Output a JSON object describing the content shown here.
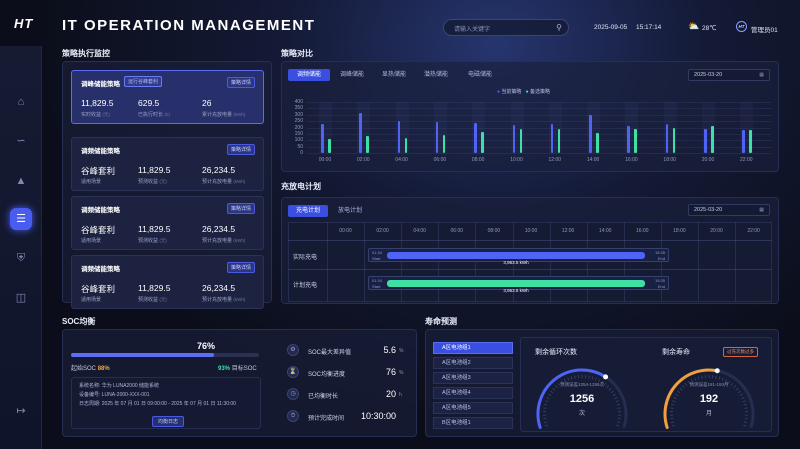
{
  "app": {
    "logo": "HT",
    "title": "IT OPERATION MANAGEMENT"
  },
  "topbar": {
    "search_placeholder": "请输入关键字",
    "date": "2025-09-05",
    "time": "15:17:14",
    "weather_icon": "partly-cloudy-icon",
    "temperature": "28℃",
    "user": "管理员01"
  },
  "sidebar": {
    "items": [
      {
        "icon": "home-icon"
      },
      {
        "icon": "chart-icon"
      },
      {
        "icon": "alarm-icon"
      },
      {
        "icon": "list-icon",
        "active": true
      },
      {
        "icon": "shield-icon"
      },
      {
        "icon": "database-icon"
      }
    ],
    "logout_icon": "logout-icon"
  },
  "strategy_monitor": {
    "title": "策略执行监控",
    "cards": [
      {
        "name": "调峰储能策略",
        "badge": "运行谷峰套利",
        "detail": "策略详情",
        "v1": "11,829.5",
        "l1": "实时收益",
        "u1": "(元)",
        "v2": "629.5",
        "l2": "已执行时长",
        "u2": "(h)",
        "v3": "26",
        "l3": "累计充放电量",
        "u3": "(kWh)"
      },
      {
        "name": "调频储能策略",
        "detail": "策略详情",
        "v1": "谷峰套利",
        "l1": "适用场景",
        "v2": "11,829.5",
        "l2": "预测收益",
        "u2": "(元)",
        "v3": "26,234.5",
        "l3": "预计充放电量",
        "u3": "(kWh)"
      },
      {
        "name": "调频储能策略",
        "detail": "策略详情",
        "v1": "谷峰套利",
        "l1": "适用场景",
        "v2": "11,829.5",
        "l2": "预测收益",
        "u2": "(元)",
        "v3": "26,234.5",
        "l3": "预计充放电量",
        "u3": "(kWh)"
      },
      {
        "name": "调频储能策略",
        "detail": "策略详情",
        "v1": "谷峰套利",
        "l1": "适用场景",
        "v2": "11,829.5",
        "l2": "预测收益",
        "u2": "(元)",
        "v3": "26,234.5",
        "l3": "预计充放电量",
        "u3": "(kWh)"
      }
    ]
  },
  "strategy_compare": {
    "title": "策略对比",
    "tabs": [
      "调频储能",
      "调峰储能",
      "显热储能",
      "潜热储能",
      "电磁储能"
    ],
    "date": "2025-03-20",
    "legend": [
      "当前策略",
      "备选策略"
    ],
    "colors": {
      "current": "#4f63f5",
      "alt": "#3fe0a4"
    },
    "y_ticks": [
      "400",
      "350",
      "300",
      "250",
      "200",
      "150",
      "100",
      "50",
      "0"
    ],
    "x_ticks": [
      "00:00",
      "02:00",
      "04:00",
      "06:00",
      "08:00",
      "10:00",
      "12:00",
      "14:00",
      "16:00",
      "18:00",
      "20:00",
      "22:00"
    ],
    "chart_data": {
      "type": "bar",
      "categories": [
        "00:00",
        "02:00",
        "04:00",
        "06:00",
        "08:00",
        "10:00",
        "12:00",
        "14:00",
        "16:00",
        "18:00",
        "20:00",
        "22:00"
      ],
      "ylim": [
        0,
        400
      ],
      "series": [
        {
          "name": "当前策略",
          "values": [
            230,
            310,
            250,
            240,
            235,
            220,
            230,
            300,
            215,
            230,
            190,
            180
          ]
        },
        {
          "name": "备选策略",
          "values": [
            110,
            135,
            120,
            140,
            165,
            185,
            190,
            160,
            190,
            200,
            215,
            180
          ]
        }
      ]
    }
  },
  "charge_plan": {
    "title": "充放电计划",
    "tabs": [
      "充电计划",
      "放电计划"
    ],
    "date": "2025-03-20",
    "hours": [
      "00:00",
      "02:00",
      "04:00",
      "06:00",
      "08:00",
      "10:00",
      "12:00",
      "14:00",
      "16:00",
      "18:00",
      "20:00",
      "22:00"
    ],
    "rows": [
      {
        "label": "实际充电",
        "start_time": "01:34",
        "start_tag": "Start",
        "end_time": "15:35",
        "end_tag": "End",
        "value": "3,963.5 kWh"
      },
      {
        "label": "计划充电",
        "start_time": "01:34",
        "start_tag": "Start",
        "end_time": "15:35",
        "end_tag": "End",
        "value": "3,963.5 kWh"
      }
    ]
  },
  "soc": {
    "title": "SOC均衡",
    "percent_label": "76%",
    "progress": 0.76,
    "start_label": "起始SOC",
    "start_value": "88%",
    "target_value": "93%",
    "target_label": "目标SOC",
    "info": [
      {
        "k": "系统名称:",
        "v": "华为 LUNA2000 储能系统"
      },
      {
        "k": "设备编号:",
        "v": "LUNA-2000-XXX-001"
      },
      {
        "k": "日志周期:",
        "v": "2025 年 07 月 01 日 09:00:00 - 2025 年 07 月 01 日 11:30:00"
      }
    ],
    "log_button": "均衡日志",
    "metrics": [
      {
        "icon": "balance-icon",
        "label": "SOC最大差异值",
        "value": "5.6",
        "unit": "%"
      },
      {
        "icon": "hourglass-icon",
        "label": "SOC均衡进度",
        "value": "76",
        "unit": "%"
      },
      {
        "icon": "clock-icon",
        "label": "已均衡时长",
        "value": "20",
        "unit": "h"
      },
      {
        "icon": "timer-icon",
        "label": "预计完成时间",
        "value": "10:30:00",
        "unit": ""
      }
    ]
  },
  "life": {
    "title": "寿命预测",
    "groups": [
      "A区电池组1",
      "A区电池组2",
      "A区电池组3",
      "A区电池组4",
      "A区电池组5",
      "B区电池组1"
    ],
    "cycles": {
      "title": "剩余循环次数",
      "range": "预测误差1254-1256次",
      "value": "1256",
      "unit": "次",
      "ratio": 0.65
    },
    "life": {
      "title": "剩余寿命",
      "badge": "过充次数过多",
      "range": "预测误差181-193月",
      "value": "192",
      "unit": "月",
      "ratio": 0.55
    }
  }
}
